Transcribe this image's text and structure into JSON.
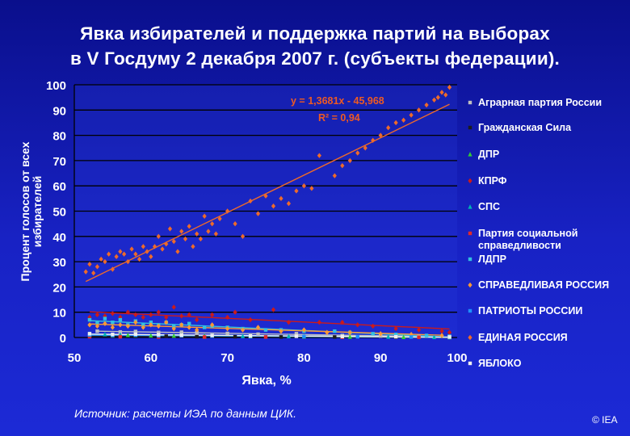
{
  "title": {
    "line1": "Явка избирателей и поддержка партий на выборах",
    "line2": "в V Госдуму 2 декабря 2007 г. (субъекты федерации)."
  },
  "source": "Источник:  расчеты ИЭА по данным ЦИК.",
  "copyright": "© IEA",
  "chart_data": {
    "type": "scatter",
    "xlabel": "Явка, %",
    "ylabel_lines": [
      "Процент голосов от всех",
      "избирателей"
    ],
    "xlim": [
      50,
      100
    ],
    "ylim": [
      0,
      100
    ],
    "x_ticks": [
      "50",
      "60",
      "70",
      "80",
      "90",
      "100"
    ],
    "y_ticks": [
      "0",
      "10",
      "20",
      "30",
      "40",
      "50",
      "60",
      "70",
      "80",
      "90",
      "100"
    ],
    "grid": {
      "horizontal": true,
      "vertical": false
    },
    "legend_position": "right",
    "trendline_label": {
      "equation": "y = 1,3681x - 45,968",
      "r2": "R² = 0,94"
    },
    "series": [
      {
        "name": "Аграрная партия России",
        "color": "#c0c0c0",
        "points": [
          [
            53,
            2.5
          ],
          [
            56,
            2.2
          ],
          [
            58,
            2.4
          ],
          [
            61,
            2
          ],
          [
            64,
            2.1
          ],
          [
            66,
            1.9
          ],
          [
            70,
            1.6
          ],
          [
            74,
            1.3
          ],
          [
            79,
            1.5
          ],
          [
            85,
            0.8
          ],
          [
            90,
            0.6
          ],
          [
            95,
            0.4
          ],
          [
            99,
            0.3
          ]
        ]
      },
      {
        "name": "Гражданская Сила",
        "color": "#1c1c1c",
        "points": [
          [
            52,
            0.6
          ],
          [
            55,
            0.5
          ],
          [
            58,
            0.4
          ],
          [
            62,
            0.5
          ],
          [
            66,
            0.3
          ],
          [
            71,
            0.3
          ],
          [
            77,
            0.2
          ],
          [
            84,
            0.2
          ],
          [
            92,
            0.1
          ],
          [
            99,
            0.1
          ]
        ]
      },
      {
        "name": "ДПР",
        "color": "#33cc33",
        "points": [
          [
            52,
            1.2
          ],
          [
            55,
            0.9
          ],
          [
            57,
            1
          ],
          [
            60,
            0.8
          ],
          [
            63,
            0.7
          ],
          [
            67,
            0.6
          ],
          [
            73,
            0.5
          ],
          [
            80,
            0.4
          ],
          [
            86,
            0.3
          ],
          [
            93,
            0.2
          ],
          [
            99,
            0.1
          ]
        ]
      },
      {
        "name": "КПРФ",
        "color": "#cc1a1a",
        "points": [
          [
            52,
            8
          ],
          [
            53,
            9
          ],
          [
            54,
            8.5
          ],
          [
            55,
            9.5
          ],
          [
            56,
            8
          ],
          [
            57,
            10
          ],
          [
            58,
            9
          ],
          [
            59,
            8
          ],
          [
            60,
            9
          ],
          [
            61,
            10
          ],
          [
            62,
            8
          ],
          [
            63,
            12
          ],
          [
            64,
            8.5
          ],
          [
            65,
            9
          ],
          [
            66,
            7
          ],
          [
            68,
            9
          ],
          [
            70,
            8
          ],
          [
            71,
            10
          ],
          [
            73,
            7
          ],
          [
            76,
            11
          ],
          [
            78,
            6
          ],
          [
            82,
            6
          ],
          [
            85,
            6
          ],
          [
            87,
            5
          ],
          [
            89,
            4.5
          ],
          [
            92,
            3.5
          ],
          [
            95,
            3
          ],
          [
            98,
            2.5
          ],
          [
            99,
            2
          ]
        ]
      },
      {
        "name": "СПС",
        "color": "#00b3b3",
        "points": [
          [
            52,
            1.5
          ],
          [
            54,
            1.3
          ],
          [
            56,
            1.2
          ],
          [
            58,
            1
          ],
          [
            61,
            1
          ],
          [
            64,
            0.9
          ],
          [
            68,
            0.8
          ],
          [
            72,
            0.6
          ],
          [
            78,
            0.5
          ],
          [
            85,
            0.4
          ],
          [
            91,
            0.3
          ],
          [
            97,
            0.2
          ]
        ]
      },
      {
        "name": "Партия социальной справедливости",
        "color": "#e02a2a",
        "points": [
          [
            52,
            0.3
          ],
          [
            56,
            0.3
          ],
          [
            61,
            0.2
          ],
          [
            67,
            0.2
          ],
          [
            75,
            0.2
          ],
          [
            85,
            0.1
          ],
          [
            95,
            0.1
          ]
        ]
      },
      {
        "name": "ЛДПР",
        "color": "#33c0e0",
        "points": [
          [
            52,
            7
          ],
          [
            53,
            6
          ],
          [
            54,
            7.5
          ],
          [
            55,
            6
          ],
          [
            56,
            7
          ],
          [
            57,
            5
          ],
          [
            58,
            6.5
          ],
          [
            59,
            5
          ],
          [
            60,
            6
          ],
          [
            61,
            5
          ],
          [
            62,
            6
          ],
          [
            63,
            4.5
          ],
          [
            64,
            5
          ],
          [
            65,
            5.5
          ],
          [
            67,
            4
          ],
          [
            68,
            4.5
          ],
          [
            70,
            4
          ],
          [
            72,
            3.5
          ],
          [
            75,
            3
          ],
          [
            77,
            3
          ],
          [
            80,
            2.5
          ],
          [
            84,
            2.5
          ],
          [
            86,
            2
          ],
          [
            89,
            1.5
          ],
          [
            92,
            1.2
          ],
          [
            96,
            0.8
          ],
          [
            99,
            0.5
          ]
        ]
      },
      {
        "name": "СПРАВЕДЛИВАЯ РОССИЯ",
        "color": "#ff9933",
        "points": [
          [
            52,
            5
          ],
          [
            53,
            4.5
          ],
          [
            54,
            5.5
          ],
          [
            55,
            4
          ],
          [
            56,
            5
          ],
          [
            57,
            4.5
          ],
          [
            58,
            6
          ],
          [
            59,
            4
          ],
          [
            60,
            5
          ],
          [
            61,
            4.5
          ],
          [
            62,
            6
          ],
          [
            63,
            3.5
          ],
          [
            64,
            5
          ],
          [
            65,
            4
          ],
          [
            66,
            3
          ],
          [
            68,
            5
          ],
          [
            70,
            3.5
          ],
          [
            72,
            3
          ],
          [
            74,
            4
          ],
          [
            77,
            2.5
          ],
          [
            80,
            3
          ],
          [
            83,
            2
          ],
          [
            86,
            2
          ],
          [
            90,
            1.5
          ],
          [
            94,
            1.2
          ],
          [
            98,
            0.8
          ]
        ]
      },
      {
        "name": "ПАТРИОТЫ РОССИИ",
        "color": "#1e90ff",
        "points": [
          [
            52,
            1
          ],
          [
            55,
            0.8
          ],
          [
            58,
            0.9
          ],
          [
            61,
            0.7
          ],
          [
            64,
            0.7
          ],
          [
            68,
            0.6
          ],
          [
            73,
            0.5
          ],
          [
            80,
            0.4
          ],
          [
            87,
            0.3
          ],
          [
            94,
            0.2
          ],
          [
            99,
            0.1
          ]
        ]
      },
      {
        "name": "ЕДИНАЯ РОССИЯ",
        "color": "#ee6a2a",
        "points": [
          [
            51.5,
            26
          ],
          [
            52,
            29
          ],
          [
            52.5,
            25.5
          ],
          [
            53,
            28
          ],
          [
            53.5,
            31
          ],
          [
            54,
            30
          ],
          [
            54.5,
            33
          ],
          [
            55,
            27
          ],
          [
            55.5,
            32
          ],
          [
            56,
            34
          ],
          [
            56.5,
            33
          ],
          [
            57,
            30
          ],
          [
            57.5,
            35
          ],
          [
            58,
            33
          ],
          [
            58.5,
            31
          ],
          [
            59,
            36
          ],
          [
            59.5,
            34
          ],
          [
            60,
            32
          ],
          [
            60.5,
            36
          ],
          [
            61,
            40
          ],
          [
            61.5,
            35
          ],
          [
            62,
            37
          ],
          [
            62.5,
            43
          ],
          [
            63,
            38
          ],
          [
            63.5,
            34
          ],
          [
            64,
            42
          ],
          [
            64.5,
            39
          ],
          [
            65,
            44
          ],
          [
            65.5,
            36
          ],
          [
            66,
            41
          ],
          [
            66.5,
            39
          ],
          [
            67,
            48
          ],
          [
            67.5,
            42
          ],
          [
            68,
            45
          ],
          [
            68.5,
            41
          ],
          [
            69,
            47
          ],
          [
            70,
            50
          ],
          [
            71,
            45
          ],
          [
            72,
            40
          ],
          [
            73,
            54
          ],
          [
            74,
            49
          ],
          [
            75,
            56
          ],
          [
            76,
            52
          ],
          [
            77,
            55
          ],
          [
            78,
            53
          ],
          [
            79,
            58
          ],
          [
            80,
            60
          ],
          [
            81,
            59
          ],
          [
            82,
            72
          ],
          [
            84,
            64
          ],
          [
            85,
            68
          ],
          [
            86,
            70
          ],
          [
            87,
            73
          ],
          [
            88,
            75
          ],
          [
            89,
            78
          ],
          [
            90,
            80
          ],
          [
            91,
            83
          ],
          [
            92,
            85
          ],
          [
            93,
            86
          ],
          [
            94,
            88
          ],
          [
            95,
            90
          ],
          [
            96,
            92
          ],
          [
            97,
            94
          ],
          [
            97.5,
            95
          ],
          [
            98,
            97
          ],
          [
            98.5,
            96
          ],
          [
            99,
            99
          ]
        ]
      },
      {
        "name": "ЯБЛОКО",
        "color": "#f0f0f0",
        "points": [
          [
            52,
            1.5
          ],
          [
            55,
            1.2
          ],
          [
            58,
            1.3
          ],
          [
            61,
            1.1
          ],
          [
            64,
            0.9
          ],
          [
            68,
            0.8
          ],
          [
            73,
            0.6
          ],
          [
            79,
            0.5
          ],
          [
            85,
            0.4
          ],
          [
            92,
            0.3
          ],
          [
            99,
            0.2
          ]
        ]
      }
    ]
  }
}
